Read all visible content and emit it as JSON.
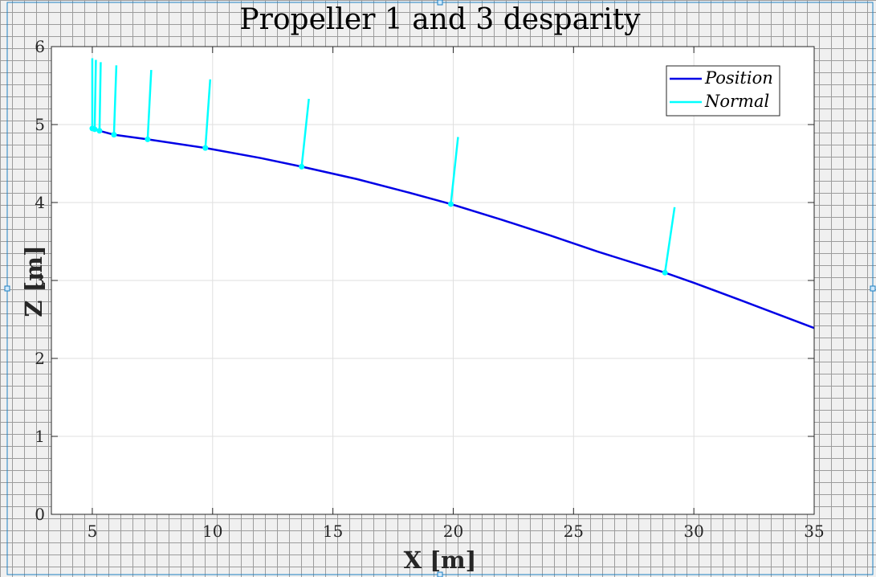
{
  "figure": {
    "title": "Propeller 1 and 3 desparity",
    "xlabel": "X [m]",
    "ylabel": "Z [m]"
  },
  "chart_data": {
    "type": "line",
    "title": "Propeller 1 and 3 desparity",
    "xlabel": "X [m]",
    "ylabel": "Z [m]",
    "xlim": [
      3.3,
      35
    ],
    "ylim": [
      0,
      6
    ],
    "xticks": [
      5,
      10,
      15,
      20,
      25,
      30,
      35
    ],
    "yticks": [
      0,
      1,
      2,
      3,
      4,
      5,
      6
    ],
    "grid": true,
    "legend_position": "top-right",
    "colors": {
      "position": "#0000e6",
      "normal": "#00ffff"
    },
    "series": [
      {
        "name": "Position",
        "kind": "line",
        "x": [
          5.0,
          5.1,
          5.3,
          5.9,
          7.3,
          9.7,
          12.0,
          13.7,
          16.0,
          18.0,
          19.9,
          22.0,
          24.0,
          26.0,
          28.8,
          30.0,
          32.0,
          35.0
        ],
        "y": [
          4.95,
          4.94,
          4.92,
          4.87,
          4.81,
          4.7,
          4.57,
          4.46,
          4.3,
          4.14,
          3.98,
          3.78,
          3.58,
          3.37,
          3.1,
          2.97,
          2.74,
          2.39
        ]
      },
      {
        "name": "Normal",
        "kind": "segments",
        "segments": [
          {
            "x0": 5.0,
            "y0": 4.95,
            "x1": 5.0,
            "y1": 5.85
          },
          {
            "x0": 5.1,
            "y0": 4.94,
            "x1": 5.15,
            "y1": 5.83
          },
          {
            "x0": 5.3,
            "y0": 4.92,
            "x1": 5.35,
            "y1": 5.8
          },
          {
            "x0": 5.9,
            "y0": 4.87,
            "x1": 6.0,
            "y1": 5.76
          },
          {
            "x0": 7.3,
            "y0": 4.81,
            "x1": 7.45,
            "y1": 5.7
          },
          {
            "x0": 9.7,
            "y0": 4.7,
            "x1": 9.9,
            "y1": 5.58
          },
          {
            "x0": 13.7,
            "y0": 4.46,
            "x1": 14.0,
            "y1": 5.33
          },
          {
            "x0": 19.9,
            "y0": 3.98,
            "x1": 20.2,
            "y1": 4.84
          },
          {
            "x0": 28.8,
            "y0": 3.1,
            "x1": 29.2,
            "y1": 3.94
          }
        ]
      }
    ]
  }
}
